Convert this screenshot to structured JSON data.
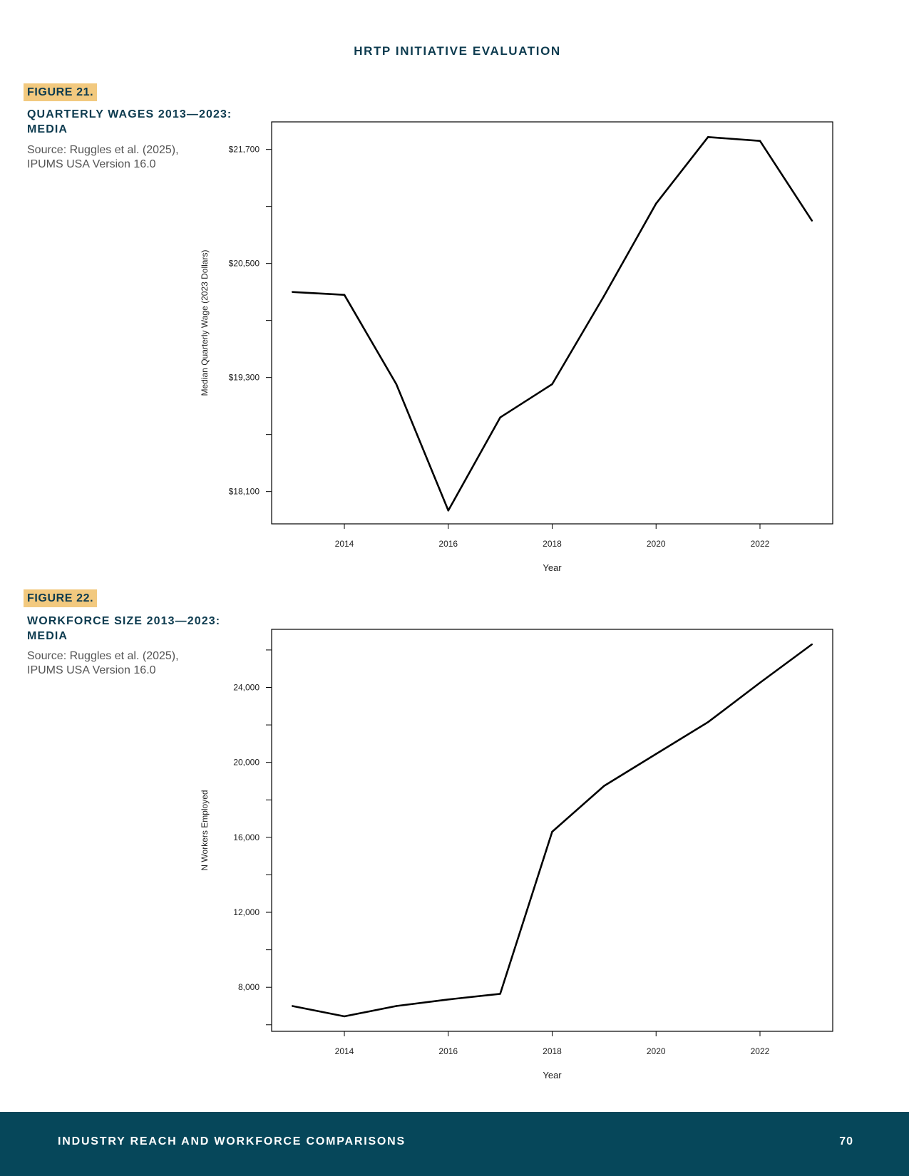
{
  "header": {
    "title": "HRTP INITIATIVE EVALUATION"
  },
  "figures": [
    {
      "badge": "FIGURE 21.",
      "title": "QUARTERLY WAGES 2013—2023: MEDIA",
      "source": "Source: Ruggles et al. (2025), IPUMS USA Version 16.0"
    },
    {
      "badge": "FIGURE 22.",
      "title": "WORKFORCE SIZE 2013—2023: MEDIA",
      "source": "Source: Ruggles et al. (2025), IPUMS USA Version 16.0"
    }
  ],
  "chart_data": [
    {
      "type": "line",
      "title": "",
      "xlabel": "Year",
      "ylabel": "Median Quarterly Wage (2023 Dollars)",
      "x": [
        2013,
        2014,
        2015,
        2016,
        2017,
        2018,
        2019,
        2020,
        2021,
        2022,
        2023
      ],
      "values": [
        20200,
        20170,
        19230,
        17900,
        18880,
        19230,
        20160,
        21130,
        21830,
        21790,
        20950
      ],
      "xlim": [
        2012.6,
        2023.4
      ],
      "ylim": [
        17760,
        21990
      ],
      "xticks": [
        2014,
        2016,
        2018,
        2020,
        2022
      ],
      "xtick_labels": [
        "2014",
        "2016",
        "2018",
        "2020",
        "2022"
      ],
      "yticks": [
        18100,
        18700,
        19300,
        19900,
        20500,
        21100,
        21700
      ],
      "ytick_labels": [
        "$18,100",
        "",
        "$19,300",
        "",
        "$20,500",
        "",
        "$21,700"
      ],
      "grid": false,
      "line_color": "#000000"
    },
    {
      "type": "line",
      "title": "",
      "xlabel": "Year",
      "ylabel": "N Workers Employed",
      "x": [
        2013,
        2014,
        2015,
        2016,
        2017,
        2018,
        2019,
        2020,
        2021,
        2022,
        2023
      ],
      "values": [
        7000,
        6450,
        7000,
        7350,
        7650,
        16300,
        18750,
        20450,
        22150,
        24250,
        26300
      ],
      "xlim": [
        2012.6,
        2023.4
      ],
      "ylim": [
        5650,
        27100
      ],
      "xticks": [
        2014,
        2016,
        2018,
        2020,
        2022
      ],
      "xtick_labels": [
        "2014",
        "2016",
        "2018",
        "2020",
        "2022"
      ],
      "yticks": [
        6000,
        8000,
        10000,
        12000,
        14000,
        16000,
        18000,
        20000,
        22000,
        24000,
        26000
      ],
      "ytick_labels": [
        "",
        "8,000",
        "",
        "12,000",
        "",
        "16,000",
        "",
        "20,000",
        "",
        "24,000",
        ""
      ],
      "grid": false,
      "line_color": "#000000"
    }
  ],
  "footer": {
    "section": "INDUSTRY REACH AND WORKFORCE COMPARISONS",
    "page_number": "70"
  }
}
